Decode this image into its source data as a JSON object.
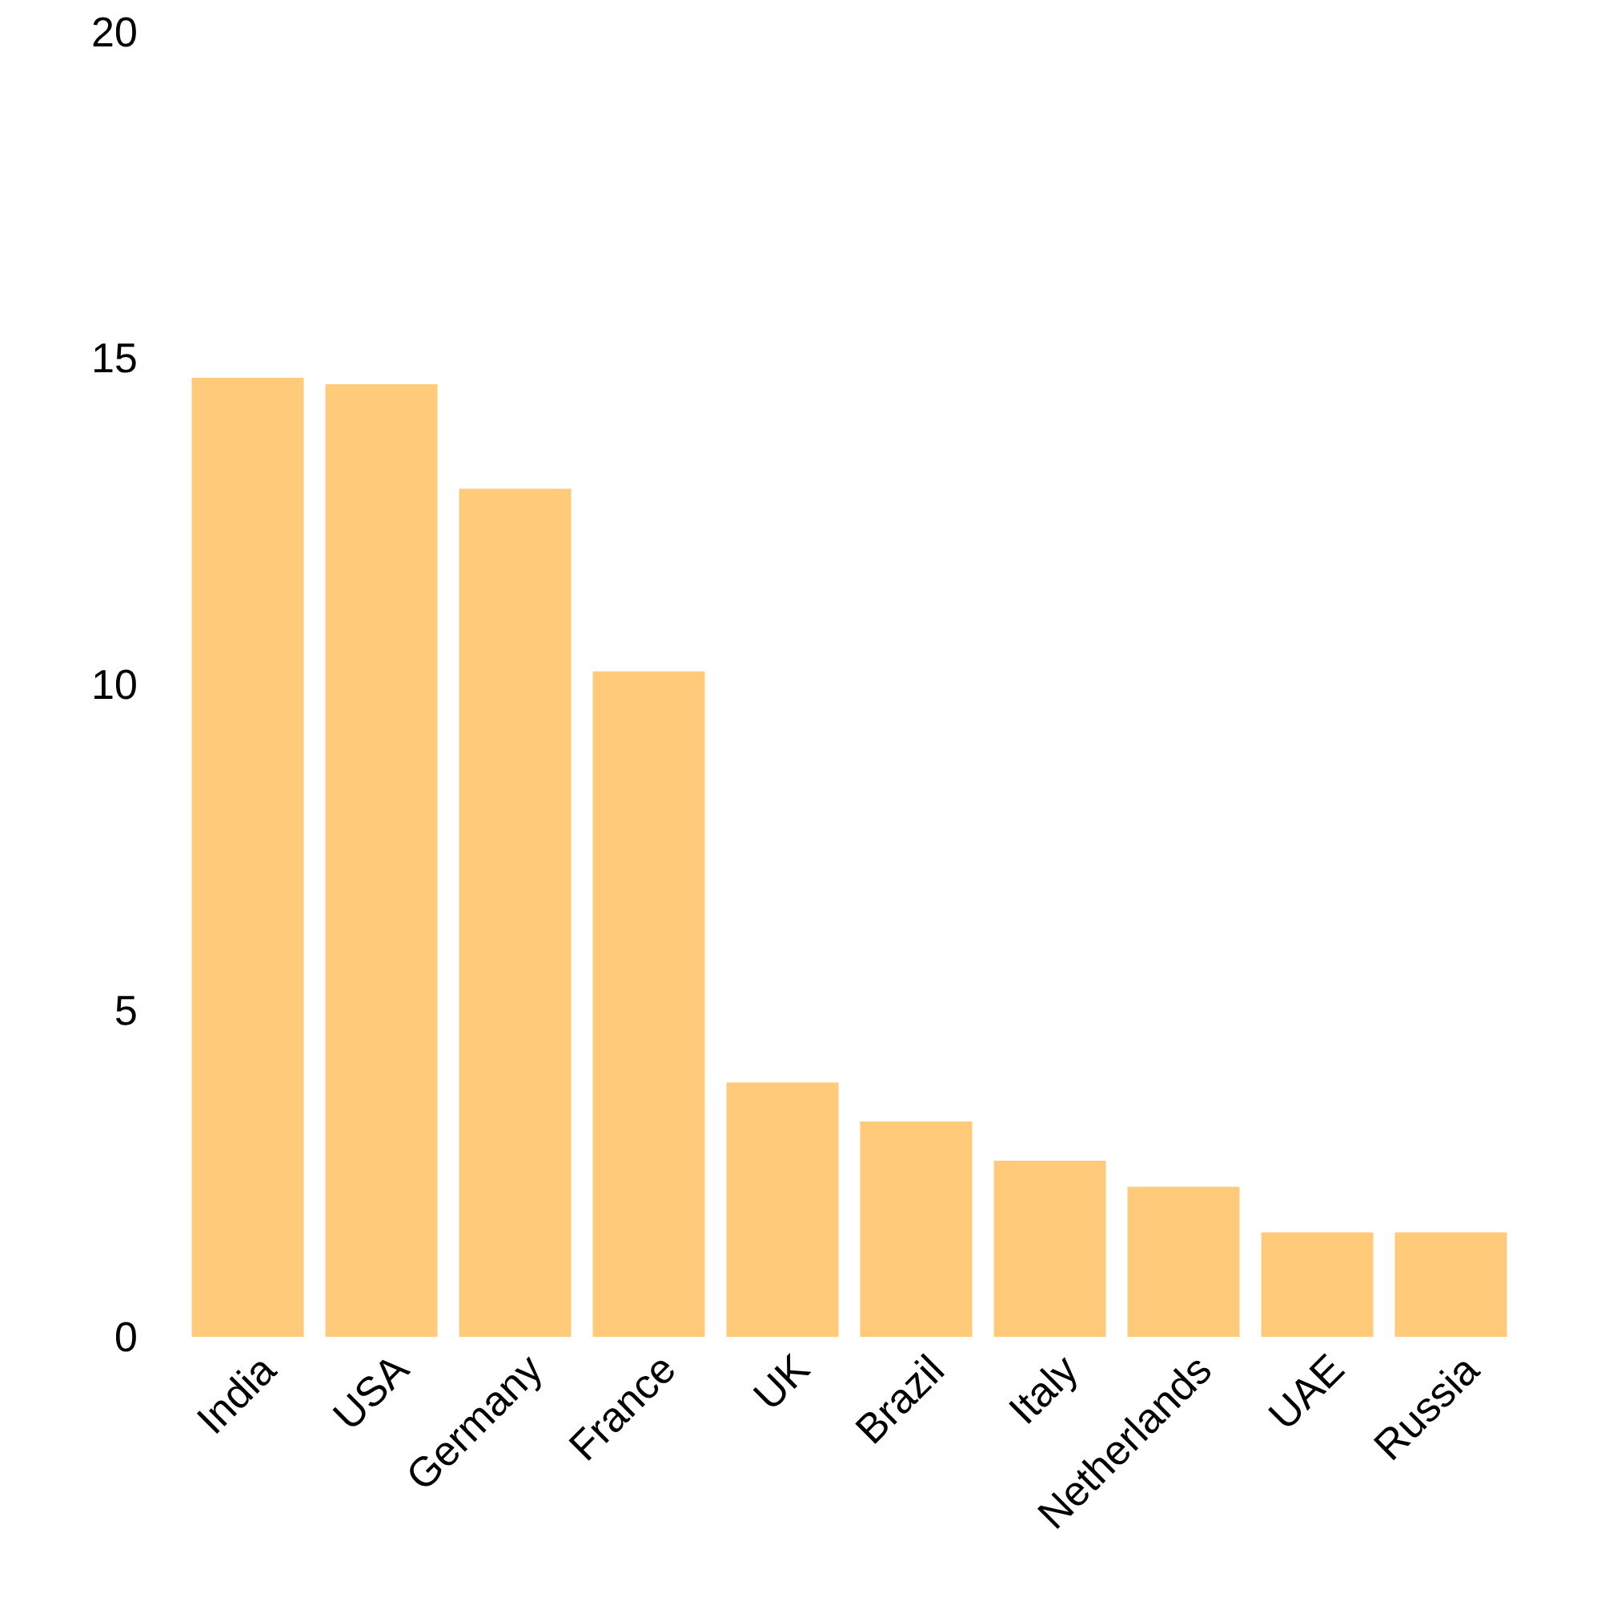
{
  "chart_data": {
    "type": "bar",
    "categories": [
      "India",
      "USA",
      "Germany",
      "France",
      "UK",
      "Brazil",
      "Italy",
      "Netherlands",
      "UAE",
      "Russia"
    ],
    "values": [
      14.7,
      14.6,
      13.0,
      10.2,
      3.9,
      3.3,
      2.7,
      2.3,
      1.6,
      1.6
    ],
    "color": "#ffca7a",
    "ylim": [
      0,
      20
    ],
    "yticks": [
      0,
      5,
      10,
      15,
      20
    ]
  }
}
